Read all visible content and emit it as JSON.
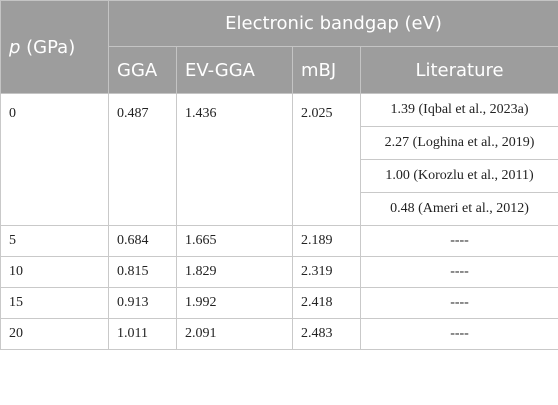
{
  "header": {
    "p_symbol": "p",
    "p_unit": " (GPa)",
    "group_title": "Electronic bandgap (eV)",
    "columns": [
      "GGA",
      "EV-GGA",
      "mBJ",
      "Literature"
    ]
  },
  "first_row": {
    "p": "0",
    "gga": "0.487",
    "evgga": "1.436",
    "mbj": "2.025",
    "literature": [
      "1.39 (Iqbal et al., 2023a)",
      "2.27 (Loghina et al., 2019)",
      "1.00 (Korozlu et al., 2011)",
      "0.48 (Ameri et al., 2012)"
    ]
  },
  "rows": [
    {
      "p": "5",
      "gga": "0.684",
      "evgga": "1.665",
      "mbj": "2.189",
      "literature": "----"
    },
    {
      "p": "10",
      "gga": "0.815",
      "evgga": "1.829",
      "mbj": "2.319",
      "literature": "----"
    },
    {
      "p": "15",
      "gga": "0.913",
      "evgga": "1.992",
      "mbj": "2.418",
      "literature": "----"
    },
    {
      "p": "20",
      "gga": "1.011",
      "evgga": "2.091",
      "mbj": "2.483",
      "literature": "----"
    }
  ]
}
